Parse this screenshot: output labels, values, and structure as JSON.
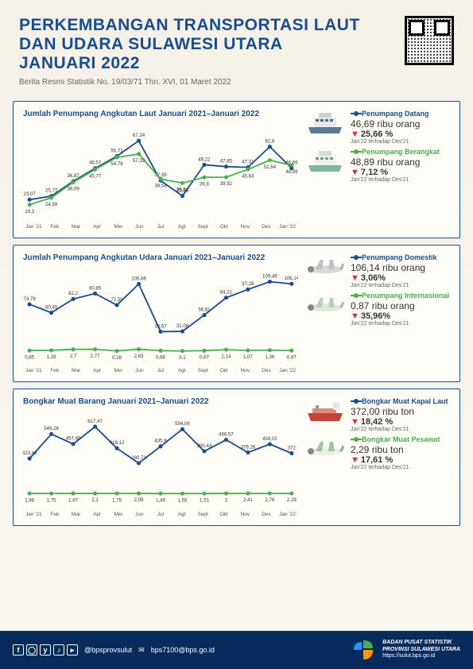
{
  "header": {
    "title": "PERKEMBANGAN TRANSPORTASI LAUT DAN UDARA SULAWESI UTARA JANUARI 2022",
    "subtitle": "Berita Resmi Statistik No. 19/03/71 Thn. XVI, 01 Maret 2022"
  },
  "charts": [
    {
      "title": "Jumlah Penumpang Angkutan Laut Januari 2021–Januari 2022",
      "categories": [
        "Jan '21",
        "Feb",
        "Mar",
        "Apr",
        "Mei",
        "Jun",
        "Jul",
        "Agt",
        "Sept",
        "Okt",
        "Nov",
        "Des",
        "Jan '22"
      ],
      "series": [
        {
          "name": "Penumpang Datang",
          "color": "#1a4d8f",
          "values": [
            23.07,
            25.77,
            36.87,
            46.57,
            55.71,
            67.24,
            37.39,
            25.83,
            49.22,
            47.85,
            47.31,
            62.8,
            46.69
          ]
        },
        {
          "name": "Penumpang Berangkat",
          "color": "#4caf50",
          "values": [
            19.3,
            24.59,
            36.09,
            45.77,
            54.78,
            57.32,
            38.54,
            35.54,
            39.8,
            39.92,
            45.83,
            52.64,
            48.89
          ]
        }
      ],
      "ylim": [
        15,
        72
      ],
      "side": [
        {
          "legend_class": "blue",
          "legend_label": "Penumpang Datang",
          "value": "46,69 ribu orang",
          "pct": "25,66 %",
          "note": "Jan'22 terhadap Des'21",
          "vehicle": "ferry"
        },
        {
          "legend_class": "green",
          "legend_label": "Penumpang Berangkat",
          "value": "48,89 ribu orang",
          "pct": "7,12 %",
          "note": "Jan'22 terhadap Des'21",
          "vehicle": "ferry2"
        }
      ]
    },
    {
      "title": "Jumlah Penumpang Angkutan Udara Januari 2021–Januari 2022",
      "categories": [
        "Jan '21",
        "Feb",
        "Mar",
        "Apr",
        "Mei",
        "Jun",
        "Jul",
        "Agt",
        "Sept",
        "Okt",
        "Nov",
        "Des",
        "Jan '22"
      ],
      "series": [
        {
          "name": "Penumpang Domestik",
          "color": "#1a4d8f",
          "values": [
            73.79,
            60.45,
            82.2,
            90.85,
            72.55,
            105.86,
            30.67,
            31.08,
            56.81,
            84.21,
            97.28,
            109.49,
            106.14
          ]
        },
        {
          "name": "Penumpang Internasional",
          "color": "#4caf50",
          "values": [
            0.85,
            1.16,
            2.7,
            2.77,
            0.28,
            2.83,
            0.68,
            0.1,
            0.67,
            2.14,
            1.07,
            1.36,
            0.87
          ]
        }
      ],
      "ylim": [
        -5,
        115
      ],
      "side": [
        {
          "legend_class": "blue",
          "legend_label": "Penumpang Domestik",
          "value": "106,14 ribu orang",
          "pct": "3,06%",
          "note": "Jan'22 terhadap Des'21",
          "vehicle": "plane"
        },
        {
          "legend_class": "green",
          "legend_label": "Penumpang Internasional",
          "value": "0,87 ribu orang",
          "pct": "35,96%",
          "note": "Jan'22 terhadap Des'21",
          "vehicle": "plane2"
        }
      ]
    },
    {
      "title": "Bongkar Muat Barang Januari 2021–Januari 2022",
      "categories": [
        "Jan '21",
        "Feb",
        "Mar",
        "Apr",
        "Mei",
        "Jun",
        "Jul",
        "Agt",
        "Sept",
        "Okt",
        "Nov",
        "Des",
        "Jan '22"
      ],
      "series": [
        {
          "name": "Bongkar Muat Kapal Laut",
          "color": "#1a4d8f",
          "values": [
            323.42,
            549.26,
            457.49,
            617.47,
            418.12,
            280.71,
            435.9,
            594.06,
            390.43,
            496.57,
            379.26,
            456.02,
            372.0
          ]
        },
        {
          "name": "Bongkar Muat Pesawat",
          "color": "#4caf50",
          "values": [
            1.98,
            1.75,
            1.97,
            2.1,
            1.75,
            2.09,
            1.49,
            1.55,
            1.51,
            2.0,
            2.41,
            2.78,
            2.29
          ]
        }
      ],
      "ylim": [
        -40,
        660
      ],
      "side": [
        {
          "legend_class": "blue",
          "legend_label": "Bongkar Muat Kapal Laut",
          "value": "372,00 ribu ton",
          "pct": "18,42 %",
          "note": "Jan'22 terhadap Des'21",
          "vehicle": "tanker"
        },
        {
          "legend_class": "green",
          "legend_label": "Bongkar Muat Pesawat",
          "value": "2,29 ribu ton",
          "pct": "17,61 %",
          "note": "Jan'22 terhadap Des'21",
          "vehicle": "plane3"
        }
      ]
    }
  ],
  "footer": {
    "handle": "@bpsprovsulut",
    "email": "bps7100@bps.go.id",
    "org1": "BADAN PUSAT STATISTIK",
    "org2": "PROVINSI SULAWESI UTARA",
    "url": "https://sulut.bps.go.id"
  }
}
